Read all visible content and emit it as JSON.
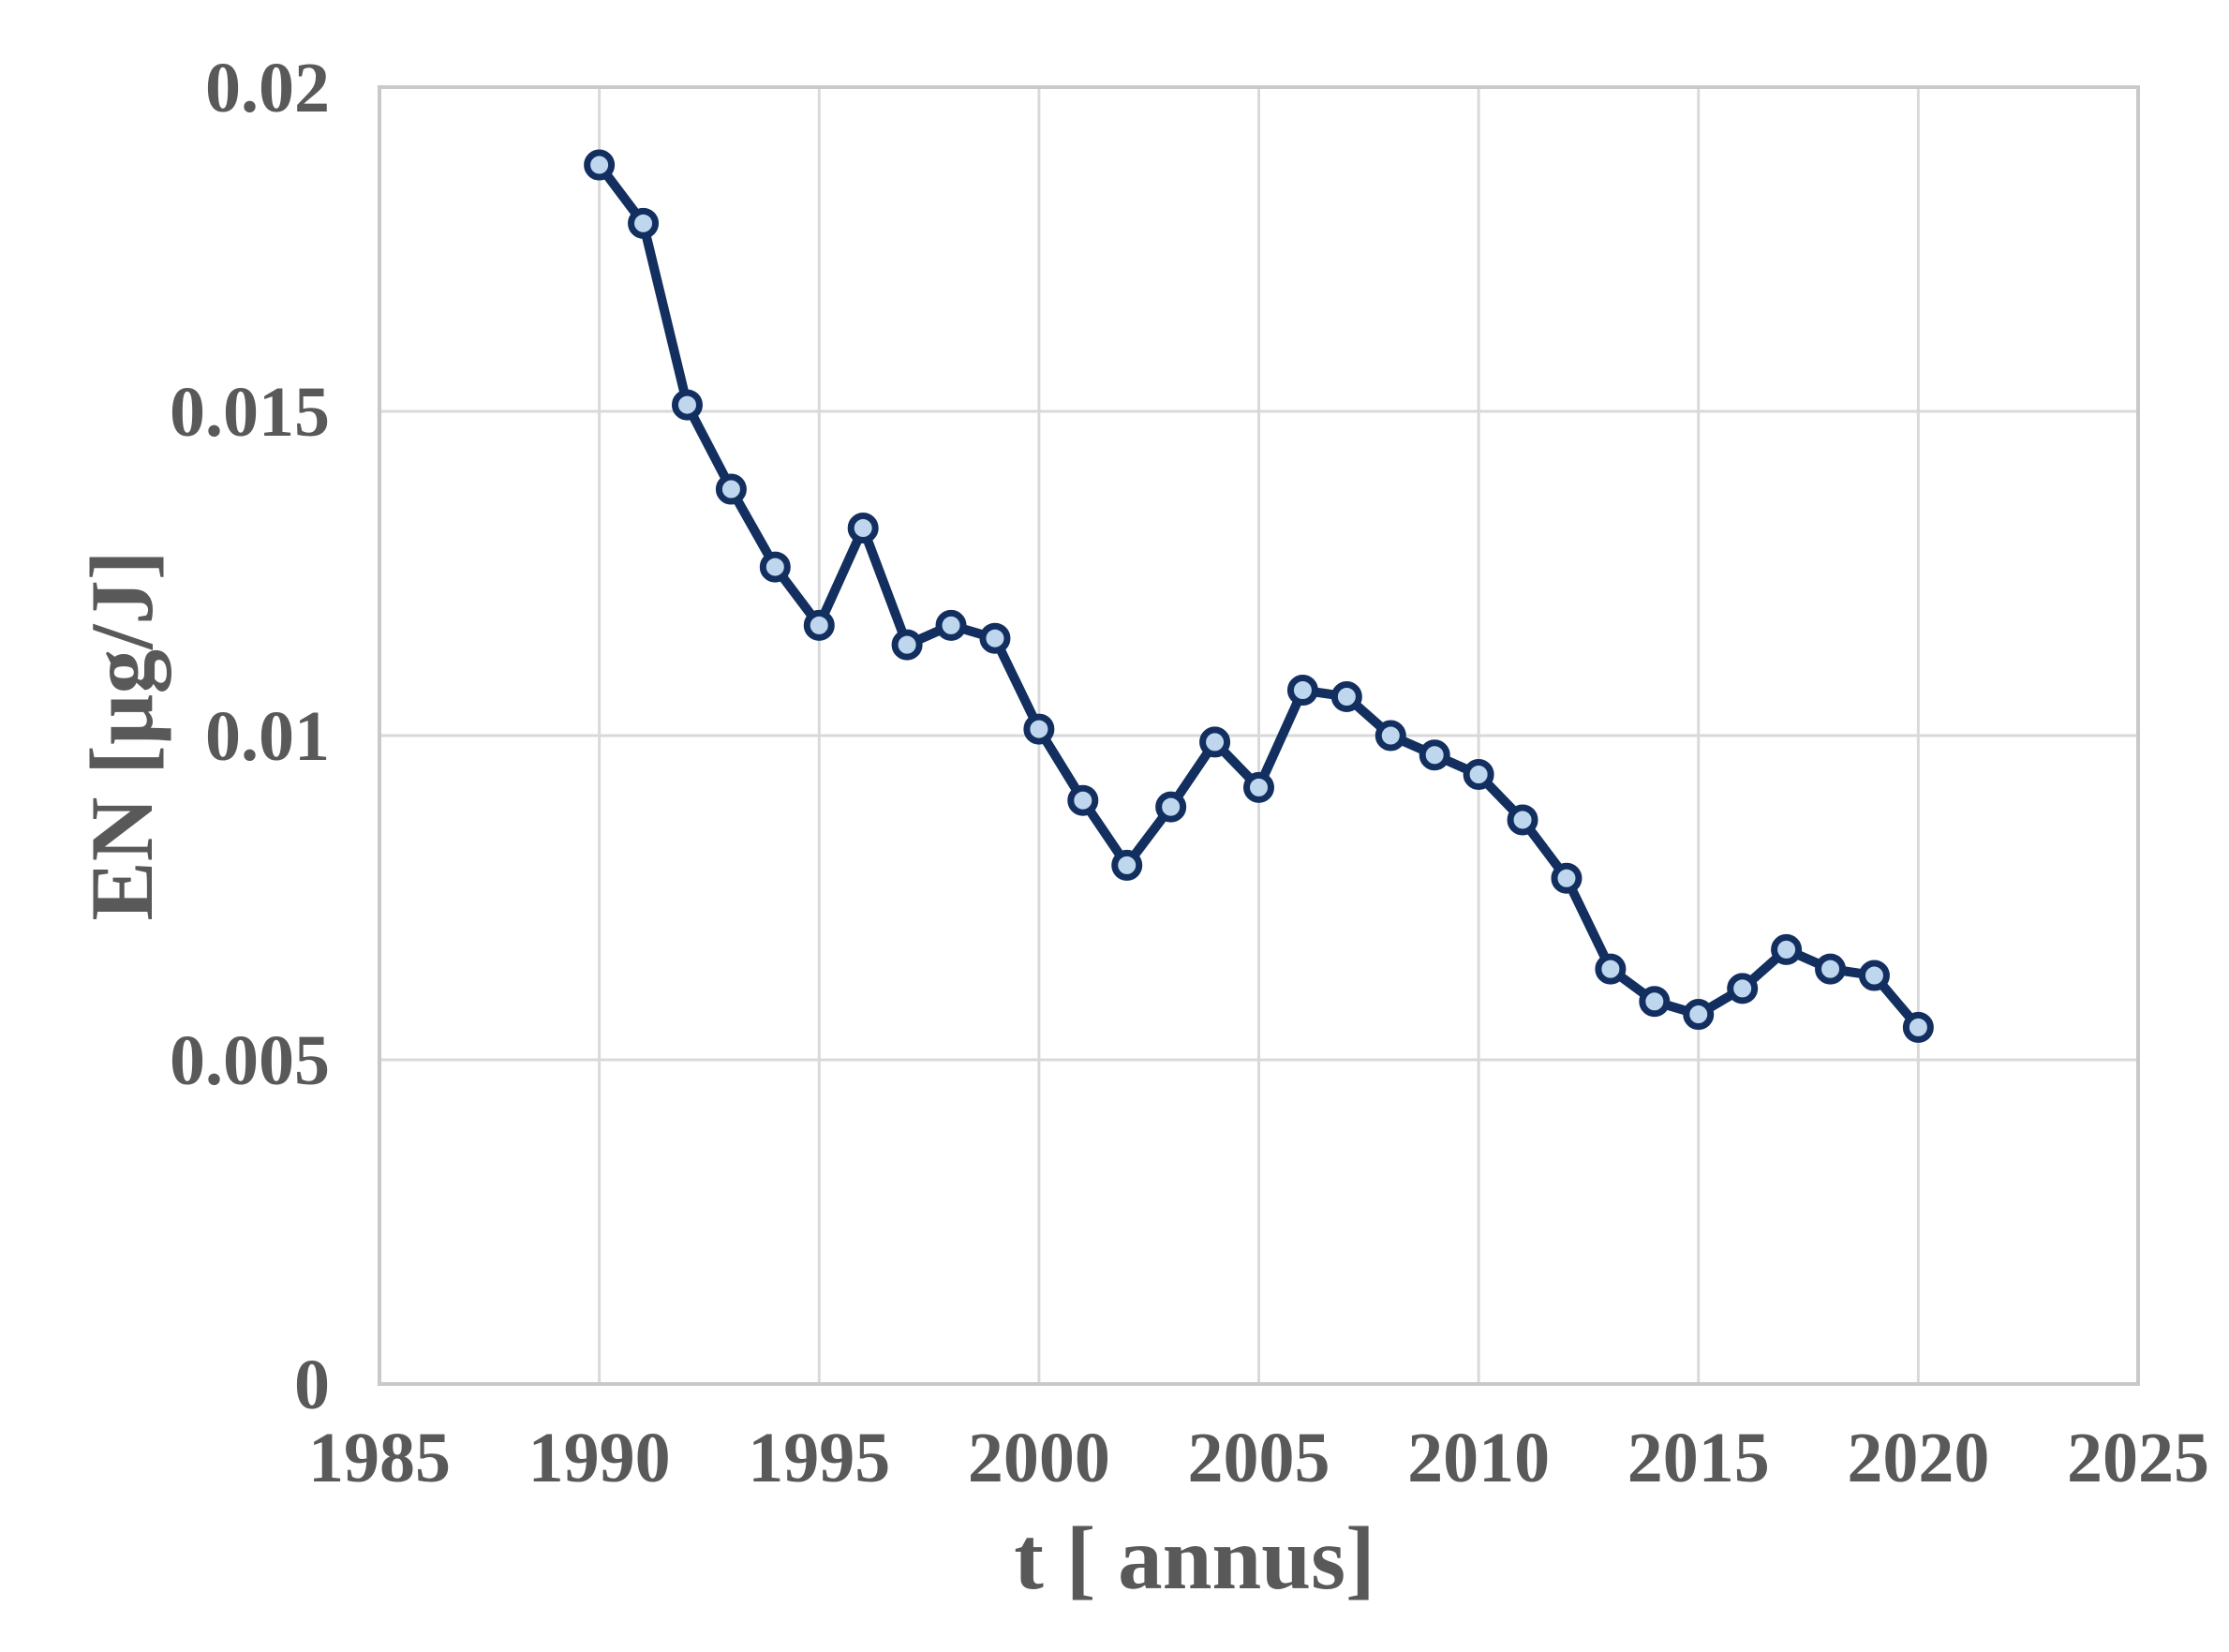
{
  "chart_data": {
    "type": "line",
    "title": "",
    "xlabel": "t [ annus]",
    "ylabel": "EN [µg/J]",
    "x": [
      1990,
      1991,
      1992,
      1993,
      1994,
      1995,
      1996,
      1997,
      1998,
      1999,
      2000,
      2001,
      2002,
      2003,
      2004,
      2005,
      2006,
      2007,
      2008,
      2009,
      2010,
      2011,
      2012,
      2013,
      2014,
      2015,
      2016,
      2017,
      2018,
      2019,
      2020
    ],
    "values": [
      0.0188,
      0.0179,
      0.0151,
      0.0138,
      0.0126,
      0.0117,
      0.0132,
      0.0114,
      0.0117,
      0.0115,
      0.0101,
      0.009,
      0.008,
      0.0089,
      0.0099,
      0.0092,
      0.0107,
      0.0106,
      0.01,
      0.0097,
      0.0094,
      0.0087,
      0.0078,
      0.0064,
      0.0059,
      0.0057,
      0.0061,
      0.0067,
      0.0064,
      0.0063,
      0.0055
    ],
    "xlim": [
      1985,
      2025
    ],
    "ylim": [
      0,
      0.02
    ],
    "x_ticks": [
      1985,
      1990,
      1995,
      2000,
      2005,
      2010,
      2015,
      2020,
      2025
    ],
    "y_ticks": [
      {
        "value": 0,
        "label": "0"
      },
      {
        "value": 0.005,
        "label": "0.005"
      },
      {
        "value": 0.01,
        "label": "0.01"
      },
      {
        "value": 0.015,
        "label": "0.015"
      },
      {
        "value": 0.02,
        "label": "0.02"
      }
    ],
    "grid": true,
    "legend": "none",
    "colors": {
      "line": "#132f60",
      "marker_fill": "#bed7ee",
      "grid": "#d9d9d9",
      "plot_border": "#c9c9c9",
      "text": "#595959",
      "background": "#ffffff"
    }
  }
}
